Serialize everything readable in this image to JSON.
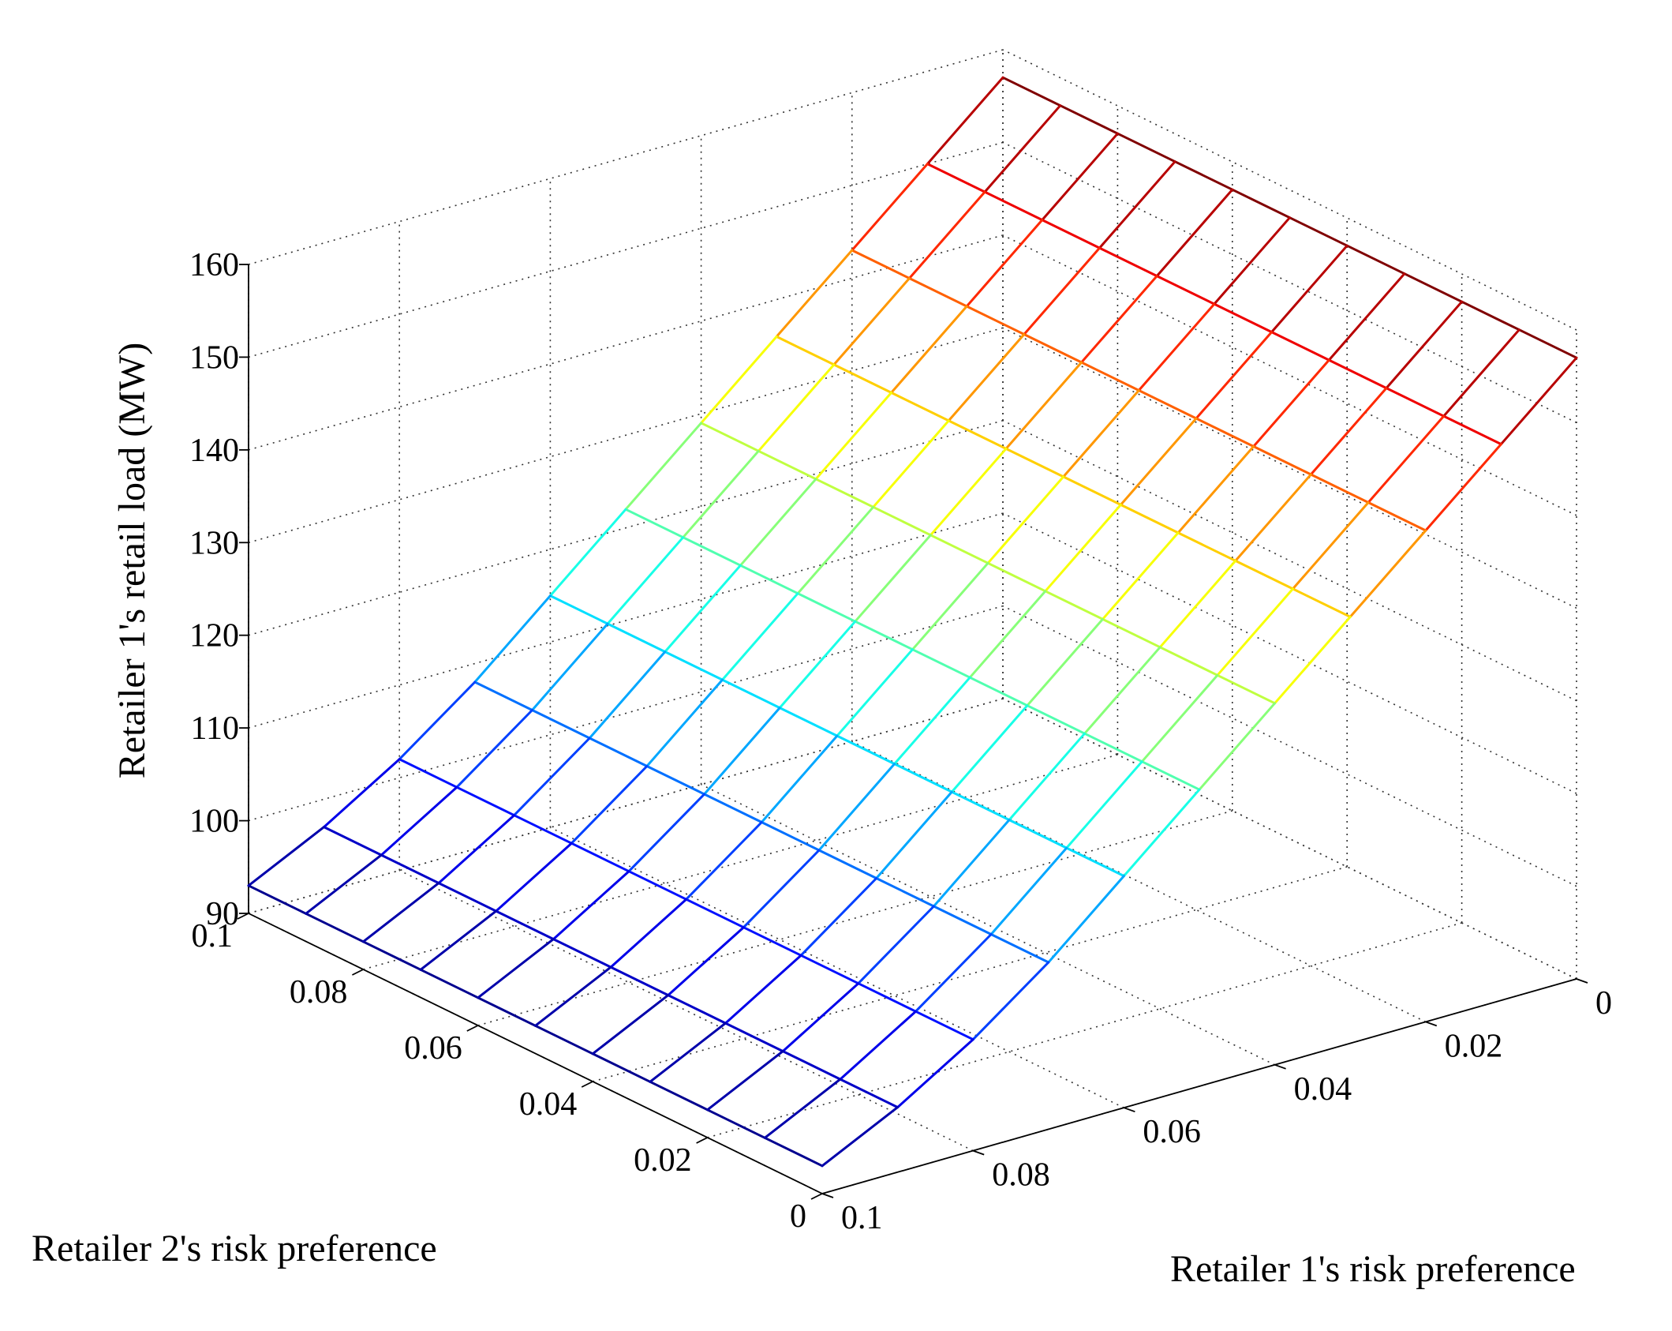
{
  "chart_data": {
    "type": "surface-mesh",
    "title": "",
    "zlabel": "Retailer 1's retail load (MW)",
    "xlabel": "Retailer 1's risk preference",
    "ylabel": "Retailer 2's risk preference",
    "zlim": [
      90,
      160
    ],
    "z_ticks": [
      90,
      100,
      110,
      120,
      130,
      140,
      150,
      160
    ],
    "z_tick_labels": [
      "90",
      "100",
      "110",
      "120",
      "130",
      "140",
      "150",
      "160"
    ],
    "x_ticks": [
      0,
      0.02,
      0.04,
      0.06,
      0.08,
      0.1
    ],
    "x_tick_labels": [
      "0",
      "0.02",
      "0.04",
      "0.06",
      "0.08",
      "0.1"
    ],
    "y_ticks": [
      0,
      0.02,
      0.04,
      0.06,
      0.08,
      0.1
    ],
    "y_tick_labels": [
      "0",
      "0.02",
      "0.04",
      "0.06",
      "0.08",
      "0.1"
    ],
    "retailer1_risk_preference": [
      0,
      0.01,
      0.02,
      0.03,
      0.04,
      0.05,
      0.06,
      0.07,
      0.08,
      0.09,
      0.1
    ],
    "retailer2_risk_preference": [
      0,
      0.01,
      0.02,
      0.03,
      0.04,
      0.05,
      0.06,
      0.07,
      0.08,
      0.09,
      0.1
    ],
    "retail_load_at_retailer2_0": [
      157,
      150,
      143,
      136,
      129,
      122,
      115,
      108,
      102,
      97,
      93
    ],
    "retail_load_at_retailer2_0.1": [
      157,
      150,
      143,
      136,
      129,
      122,
      115,
      108,
      102,
      97,
      93
    ],
    "grid": true,
    "colormap": "jet"
  }
}
